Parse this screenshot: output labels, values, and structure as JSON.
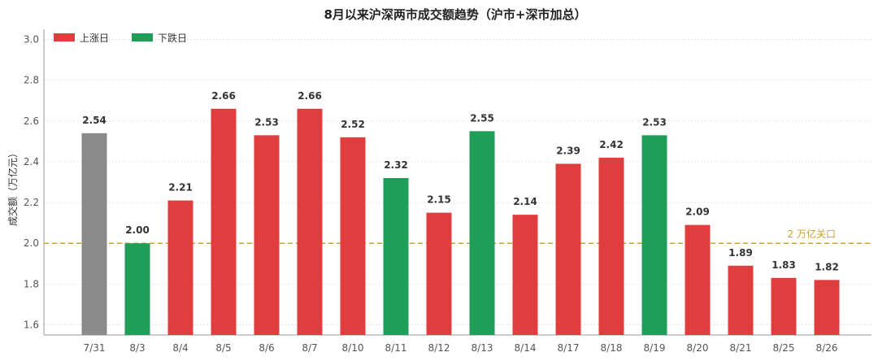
{
  "chart_data": {
    "type": "bar",
    "title": "8月以来沪深两市成交额趋势（沪市+深市加总）",
    "xlabel": "",
    "ylabel": "成交额（万亿元）",
    "ylim": [
      1.55,
      3.05
    ],
    "yticks": [
      "1.6",
      "1.8",
      "2.0",
      "2.2",
      "2.4",
      "2.6",
      "2.8",
      "3.0"
    ],
    "categories": [
      "7/31",
      "8/3",
      "8/4",
      "8/5",
      "8/6",
      "8/7",
      "8/10",
      "8/11",
      "8/12",
      "8/13",
      "8/14",
      "8/17",
      "8/18",
      "8/19",
      "8/20",
      "8/21",
      "8/25",
      "8/26"
    ],
    "values": [
      2.54,
      2.0,
      2.21,
      2.66,
      2.53,
      2.66,
      2.52,
      2.32,
      2.15,
      2.55,
      2.14,
      2.39,
      2.42,
      2.53,
      2.09,
      1.89,
      1.83,
      1.82
    ],
    "value_labels": [
      "2.54",
      "2.00",
      "2.21",
      "2.66",
      "2.53",
      "2.66",
      "2.52",
      "2.32",
      "2.15",
      "2.55",
      "2.14",
      "2.39",
      "2.42",
      "2.53",
      "2.09",
      "1.89",
      "1.83",
      "1.82"
    ],
    "bar_status": [
      "neutral",
      "down",
      "up",
      "up",
      "up",
      "up",
      "up",
      "down",
      "up",
      "down",
      "up",
      "up",
      "up",
      "down",
      "up",
      "up",
      "up",
      "up"
    ],
    "legend": [
      {
        "key": "up",
        "label": "上涨日"
      },
      {
        "key": "down",
        "label": "下跌日"
      }
    ],
    "legend_position": "top-left",
    "reference_line": {
      "value": 2.0,
      "label": "2 万亿关口"
    },
    "grid": true,
    "colors": {
      "up": "#e03e3e",
      "down": "#1f9e5a",
      "neutral": "#8a8a8a",
      "reference": "#c8a52a",
      "grid": "#e6e6e6"
    }
  }
}
